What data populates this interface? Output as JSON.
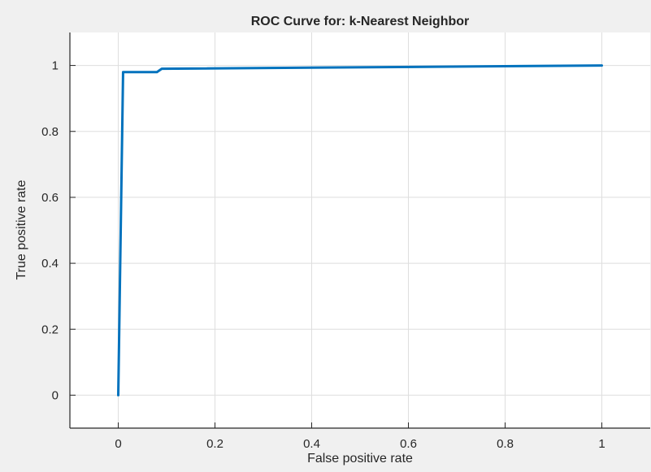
{
  "figure": {
    "background": "#f0f0f0",
    "axes_background": "#ffffff"
  },
  "chart_data": {
    "type": "line",
    "title": "ROC Curve for: k-Nearest Neighbor",
    "xlabel": "False positive rate",
    "ylabel": "True positive rate",
    "xlim": [
      -0.1,
      1.1
    ],
    "ylim": [
      -0.1,
      1.1
    ],
    "grid": true,
    "xticks": [
      0,
      0.2,
      0.4,
      0.6,
      0.8,
      1
    ],
    "xtick_labels": [
      "0",
      "0.2",
      "0.4",
      "0.6",
      "0.8",
      "1"
    ],
    "yticks": [
      0,
      0.2,
      0.4,
      0.6,
      0.8,
      1
    ],
    "ytick_labels": [
      "0",
      "0.2",
      "0.4",
      "0.6",
      "0.8",
      "1"
    ],
    "series": [
      {
        "color": "#0072bd",
        "x": [
          0,
          0.01,
          0.08,
          0.09,
          1
        ],
        "y": [
          0,
          0.98,
          0.98,
          0.99,
          1
        ]
      }
    ]
  }
}
